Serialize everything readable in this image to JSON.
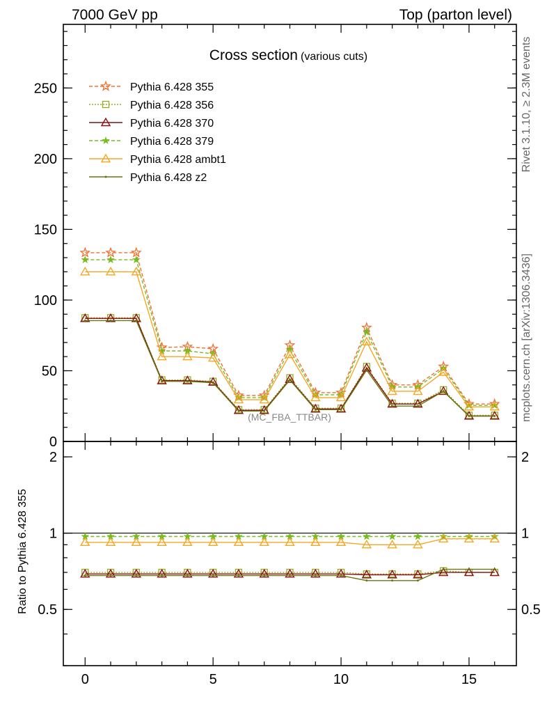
{
  "header": {
    "left": "7000 GeV pp",
    "right": "Top (parton level)"
  },
  "side_labels": {
    "rivet": "Rivet 3.1.10, ≥ 2.3M events",
    "mcplots": "mcplots.cern.ch [arXiv:1306.3436]"
  },
  "chart_data": [
    {
      "type": "line",
      "title": "Cross section",
      "subtitle": "(various cuts)",
      "annotation": "(MC_FBA_TTBAR)",
      "xlabel": "",
      "ylabel": "",
      "xlim": [
        -0.85,
        16.85
      ],
      "ylim": [
        0,
        295
      ],
      "xticks": [
        0,
        5,
        10,
        15
      ],
      "yticks": [
        0,
        50,
        100,
        150,
        200,
        250
      ],
      "x": [
        0,
        1,
        2,
        3,
        4,
        5,
        6,
        7,
        8,
        9,
        10,
        11,
        12,
        13,
        14,
        15,
        16
      ],
      "series": [
        {
          "name": "Pythia 6.428 355",
          "color": "#f07030",
          "dash": "dashed",
          "marker": "star-open",
          "values": [
            133.5,
            133.5,
            133.5,
            66.5,
            67,
            65.5,
            32.5,
            32.5,
            68,
            34.5,
            34.5,
            80.5,
            40,
            40,
            53,
            26.5,
            26.5
          ]
        },
        {
          "name": "Pythia 6.428 356",
          "color": "#99aa22",
          "dash": "dotted",
          "marker": "square-open",
          "values": [
            87.5,
            87.5,
            87.5,
            43.5,
            43.5,
            42.5,
            22.5,
            22.5,
            45,
            23.5,
            23.5,
            53,
            27,
            27,
            36.5,
            18.5,
            18.5
          ]
        },
        {
          "name": "Pythia 6.428 370",
          "color": "#881111",
          "dash": "solid",
          "marker": "triangle-open",
          "values": [
            87,
            87,
            87,
            43,
            43,
            42,
            22,
            22,
            44,
            23,
            23,
            52,
            26.5,
            26.5,
            35.5,
            18,
            18
          ]
        },
        {
          "name": "Pythia 6.428 379",
          "color": "#77bb22",
          "dash": "dashed",
          "marker": "star-filled",
          "values": [
            128.5,
            128.5,
            128.5,
            64,
            64,
            62,
            31,
            31,
            65,
            33,
            33,
            77.5,
            38.5,
            38.5,
            51.5,
            25.5,
            25.5
          ]
        },
        {
          "name": "Pythia 6.428 ambt1",
          "color": "#f5a623",
          "dash": "solid",
          "marker": "triangle-open",
          "values": [
            120,
            120,
            120,
            60,
            60,
            59,
            29.5,
            29.5,
            61.5,
            31,
            31,
            70.5,
            35.5,
            35.5,
            49,
            24.5,
            24.5
          ]
        },
        {
          "name": "Pythia 6.428 z2",
          "color": "#667711",
          "dash": "solid",
          "marker": "dot",
          "values": [
            85.5,
            85.5,
            85.5,
            42.5,
            42.5,
            41.5,
            21.5,
            21.5,
            43.5,
            22.5,
            22.5,
            50.5,
            25,
            25,
            35.5,
            18,
            18
          ]
        }
      ]
    },
    {
      "type": "line",
      "title": "",
      "xlabel": "",
      "ylabel": "Ratio to Pythia 6.428 355",
      "xlim": [
        -0.85,
        16.85
      ],
      "ylim": [
        0.3,
        2.3
      ],
      "xticks": [
        0,
        5,
        10,
        15
      ],
      "yticks": [
        0.5,
        1,
        2
      ],
      "reference_line": 1,
      "x": [
        0,
        1,
        2,
        3,
        4,
        5,
        6,
        7,
        8,
        9,
        10,
        11,
        12,
        13,
        14,
        15,
        16
      ],
      "series": [
        {
          "name": "Pythia 6.428 356",
          "color": "#99aa22",
          "dash": "dotted",
          "marker": "square-open",
          "values": [
            0.7,
            0.7,
            0.7,
            0.7,
            0.7,
            0.7,
            0.7,
            0.7,
            0.7,
            0.7,
            0.7,
            0.69,
            0.69,
            0.69,
            0.71,
            0.7,
            0.7
          ]
        },
        {
          "name": "Pythia 6.428 370",
          "color": "#881111",
          "dash": "solid",
          "marker": "triangle-open",
          "values": [
            0.69,
            0.69,
            0.69,
            0.69,
            0.69,
            0.69,
            0.69,
            0.69,
            0.69,
            0.69,
            0.69,
            0.685,
            0.685,
            0.685,
            0.7,
            0.7,
            0.7
          ]
        },
        {
          "name": "Pythia 6.428 379",
          "color": "#77bb22",
          "dash": "dashed",
          "marker": "star-filled",
          "values": [
            0.97,
            0.97,
            0.97,
            0.97,
            0.97,
            0.97,
            0.97,
            0.97,
            0.97,
            0.97,
            0.97,
            0.97,
            0.97,
            0.97,
            0.97,
            0.97,
            0.97
          ]
        },
        {
          "name": "Pythia 6.428 ambt1",
          "color": "#f5a623",
          "dash": "solid",
          "marker": "triangle-open",
          "values": [
            0.92,
            0.92,
            0.92,
            0.92,
            0.92,
            0.92,
            0.92,
            0.92,
            0.92,
            0.92,
            0.92,
            0.9,
            0.9,
            0.9,
            0.95,
            0.95,
            0.95
          ]
        },
        {
          "name": "Pythia 6.428 z2",
          "color": "#667711",
          "dash": "solid",
          "marker": "dot",
          "values": [
            0.68,
            0.68,
            0.68,
            0.68,
            0.68,
            0.68,
            0.68,
            0.68,
            0.68,
            0.68,
            0.68,
            0.65,
            0.65,
            0.65,
            0.72,
            0.72,
            0.72
          ]
        }
      ]
    }
  ]
}
